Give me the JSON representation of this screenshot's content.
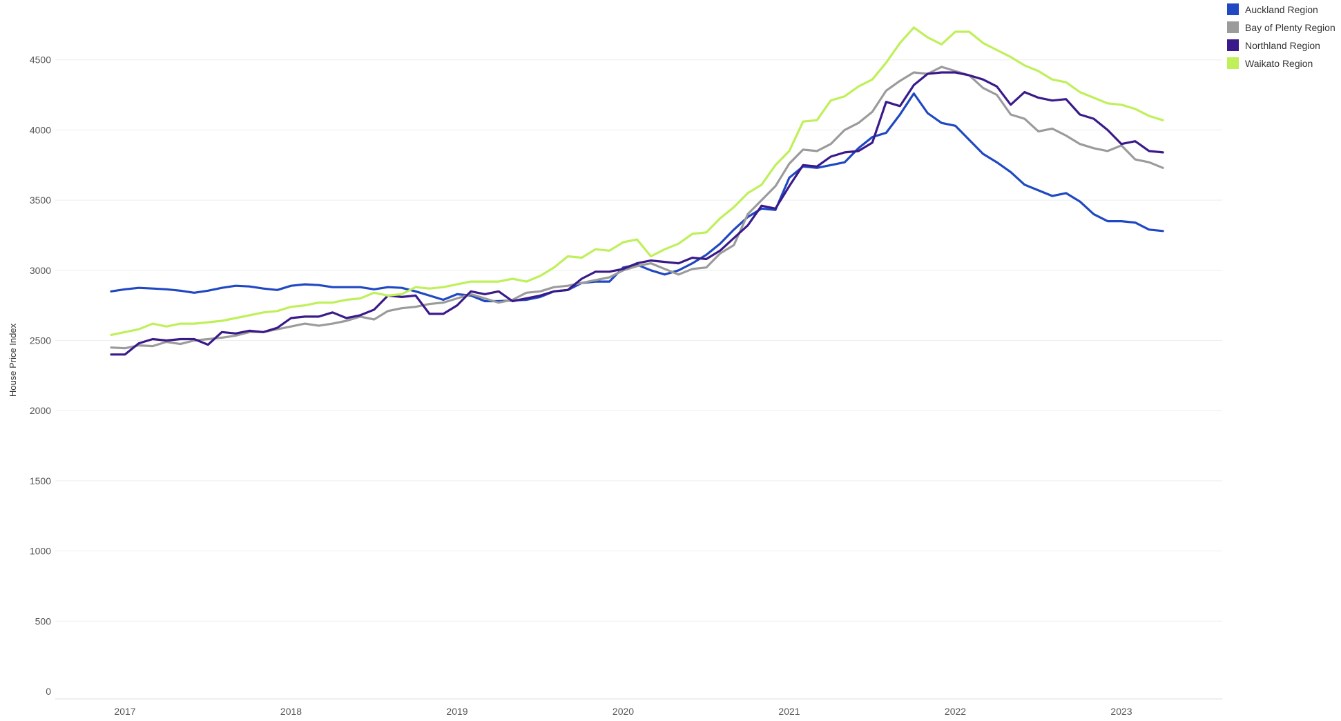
{
  "chart_data": {
    "type": "line",
    "title": "",
    "xlabel": "",
    "ylabel": "House Price Index",
    "ylim": [
      0,
      4700
    ],
    "y_ticks": [
      0,
      500,
      1000,
      1500,
      2000,
      2500,
      3000,
      3500,
      4000,
      4500
    ],
    "x_ticks": [
      "2017",
      "2018",
      "2019",
      "2020",
      "2021",
      "2022",
      "2023"
    ],
    "x": [
      "2016-12",
      "2017-01",
      "2017-02",
      "2017-03",
      "2017-04",
      "2017-05",
      "2017-06",
      "2017-07",
      "2017-08",
      "2017-09",
      "2017-10",
      "2017-11",
      "2017-12",
      "2018-01",
      "2018-02",
      "2018-03",
      "2018-04",
      "2018-05",
      "2018-06",
      "2018-07",
      "2018-08",
      "2018-09",
      "2018-10",
      "2018-11",
      "2018-12",
      "2019-01",
      "2019-02",
      "2019-03",
      "2019-04",
      "2019-05",
      "2019-06",
      "2019-07",
      "2019-08",
      "2019-09",
      "2019-10",
      "2019-11",
      "2019-12",
      "2020-01",
      "2020-02",
      "2020-03",
      "2020-04",
      "2020-05",
      "2020-06",
      "2020-07",
      "2020-08",
      "2020-09",
      "2020-10",
      "2020-11",
      "2020-12",
      "2021-01",
      "2021-02",
      "2021-03",
      "2021-04",
      "2021-05",
      "2021-06",
      "2021-07",
      "2021-08",
      "2021-09",
      "2021-10",
      "2021-11",
      "2021-12",
      "2022-01",
      "2022-02",
      "2022-03",
      "2022-04",
      "2022-05",
      "2022-06",
      "2022-07",
      "2022-08",
      "2022-09",
      "2022-10",
      "2022-11",
      "2022-12",
      "2023-01",
      "2023-02",
      "2023-03",
      "2023-04"
    ],
    "grid": true,
    "legend_position": "top-right",
    "series": [
      {
        "name": "Auckland Region",
        "color": "#1f48c2",
        "values": [
          2850,
          2865,
          2875,
          2870,
          2865,
          2855,
          2840,
          2855,
          2875,
          2890,
          2885,
          2870,
          2860,
          2890,
          2900,
          2895,
          2880,
          2880,
          2880,
          2865,
          2880,
          2875,
          2850,
          2820,
          2790,
          2830,
          2820,
          2780,
          2780,
          2785,
          2790,
          2810,
          2850,
          2860,
          2910,
          2920,
          2920,
          3020,
          3040,
          3000,
          2970,
          3000,
          3050,
          3110,
          3190,
          3290,
          3380,
          3440,
          3430,
          3660,
          3740,
          3730,
          3750,
          3770,
          3870,
          3950,
          3980,
          4110,
          4260,
          4120,
          4050,
          4030,
          3930,
          3830,
          3770,
          3700,
          3610,
          3570,
          3530,
          3550,
          3490,
          3400,
          3350,
          3350,
          3340,
          3290,
          3280
        ]
      },
      {
        "name": "Bay of Plenty Region",
        "color": "#9b9b9b",
        "values": [
          2450,
          2445,
          2465,
          2460,
          2490,
          2475,
          2500,
          2510,
          2520,
          2535,
          2560,
          2560,
          2580,
          2600,
          2620,
          2605,
          2620,
          2640,
          2670,
          2650,
          2710,
          2730,
          2740,
          2760,
          2770,
          2800,
          2830,
          2800,
          2770,
          2790,
          2840,
          2850,
          2880,
          2890,
          2910,
          2930,
          2950,
          3000,
          3030,
          3050,
          3010,
          2970,
          3010,
          3020,
          3120,
          3180,
          3400,
          3500,
          3600,
          3760,
          3860,
          3850,
          3900,
          4000,
          4050,
          4130,
          4280,
          4350,
          4410,
          4400,
          4450,
          4420,
          4390,
          4300,
          4250,
          4110,
          4080,
          3990,
          4010,
          3960,
          3900,
          3870,
          3850,
          3890,
          3790,
          3770,
          3730
        ]
      },
      {
        "name": "Northland Region",
        "color": "#3a1a8a",
        "values": [
          2400,
          2400,
          2480,
          2510,
          2500,
          2510,
          2510,
          2470,
          2560,
          2550,
          2570,
          2560,
          2590,
          2660,
          2670,
          2670,
          2700,
          2660,
          2680,
          2720,
          2820,
          2810,
          2820,
          2690,
          2690,
          2750,
          2850,
          2830,
          2850,
          2780,
          2800,
          2820,
          2850,
          2860,
          2940,
          2990,
          2990,
          3010,
          3050,
          3070,
          3060,
          3050,
          3090,
          3080,
          3140,
          3230,
          3320,
          3460,
          3440,
          3600,
          3750,
          3740,
          3810,
          3840,
          3850,
          3910,
          4200,
          4170,
          4320,
          4400,
          4410,
          4410,
          4390,
          4360,
          4310,
          4180,
          4270,
          4230,
          4210,
          4220,
          4110,
          4080,
          4000,
          3900,
          3920,
          3850,
          3840
        ]
      },
      {
        "name": "Waikato Region",
        "color": "#bff05a",
        "values": [
          2540,
          2560,
          2580,
          2620,
          2600,
          2620,
          2620,
          2630,
          2640,
          2660,
          2680,
          2700,
          2710,
          2740,
          2750,
          2770,
          2770,
          2790,
          2800,
          2840,
          2820,
          2830,
          2880,
          2870,
          2880,
          2900,
          2920,
          2920,
          2920,
          2940,
          2920,
          2960,
          3020,
          3100,
          3090,
          3150,
          3140,
          3200,
          3220,
          3100,
          3150,
          3190,
          3260,
          3270,
          3370,
          3450,
          3550,
          3610,
          3750,
          3850,
          4060,
          4070,
          4210,
          4240,
          4310,
          4360,
          4480,
          4620,
          4730,
          4660,
          4610,
          4700,
          4700,
          4620,
          4570,
          4520,
          4460,
          4420,
          4360,
          4340,
          4270,
          4230,
          4190,
          4180,
          4150,
          4100,
          4070
        ]
      }
    ]
  }
}
